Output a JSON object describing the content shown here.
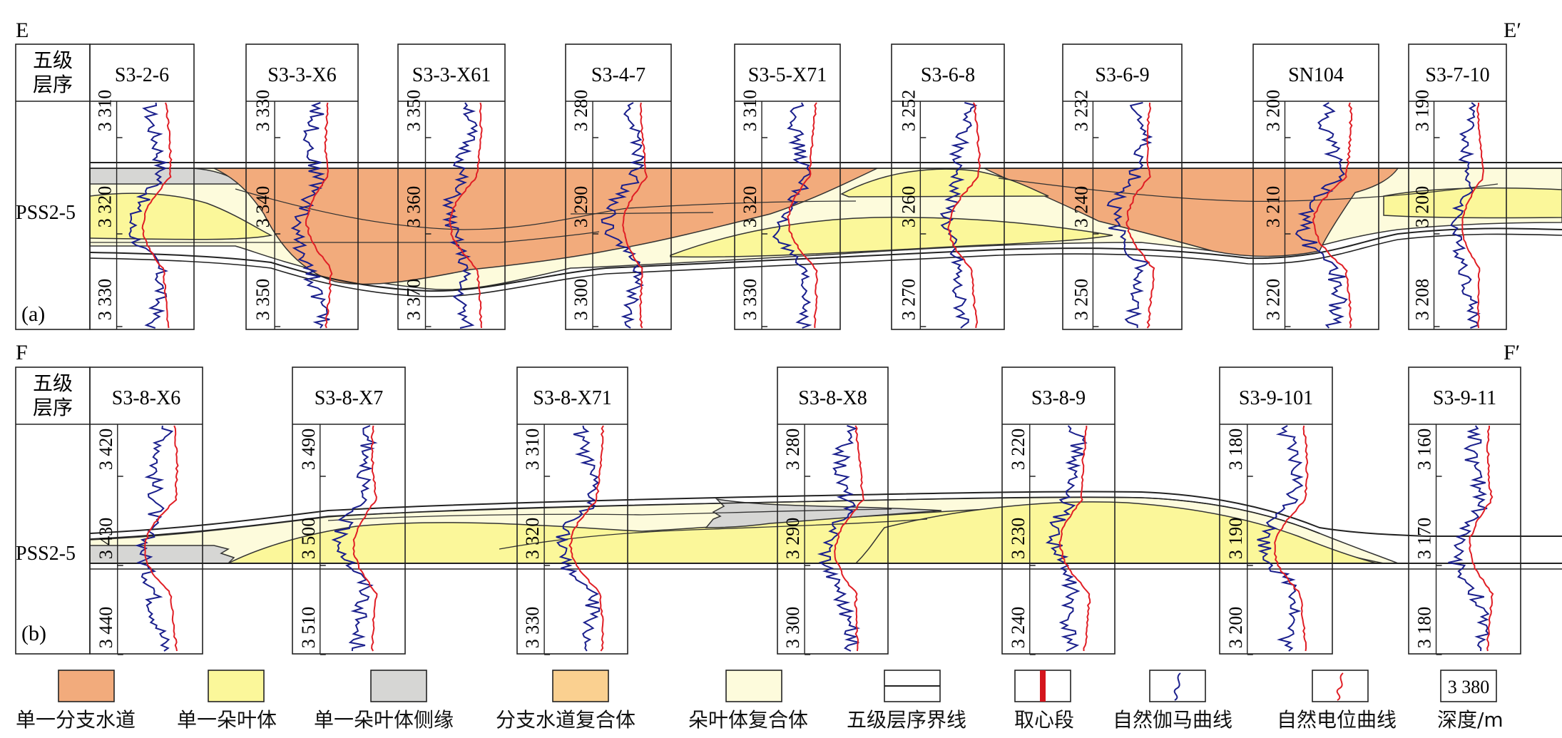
{
  "colors": {
    "branch_channel": "#f2ab7c",
    "lobe": "#fbf79a",
    "lobe_edge": "#d6d6d4",
    "channel_complex": "#fad090",
    "lobe_complex": "#fdfbdc",
    "gamma_curve": "#1a1f8c",
    "sp_curve": "#e01e25",
    "core_segment": "#d4151d"
  },
  "panel_a": {
    "left_label": "E",
    "right_label": "E′",
    "tag": "(a)",
    "header_col": "五级\n层序",
    "unit": "PSS2-5",
    "wells": [
      {
        "name": "S3-2-6",
        "depths": [
          "3 310",
          "3 320",
          "3 330"
        ]
      },
      {
        "name": "S3-3-X6",
        "depths": [
          "3 330",
          "3 340",
          "3 350"
        ]
      },
      {
        "name": "S3-3-X61",
        "depths": [
          "3 350",
          "3 360",
          "3 370"
        ]
      },
      {
        "name": "S3-4-7",
        "depths": [
          "3 280",
          "3 290",
          "3 300"
        ]
      },
      {
        "name": "S3-5-X71",
        "depths": [
          "3 310",
          "3 320",
          "3 330"
        ]
      },
      {
        "name": "S3-6-8",
        "depths": [
          "3 252",
          "3 260",
          "3 270"
        ]
      },
      {
        "name": "S3-6-9",
        "depths": [
          "3 232",
          "3 240",
          "3 250"
        ]
      },
      {
        "name": "SN104",
        "depths": [
          "3 200",
          "3 210",
          "3 220"
        ]
      },
      {
        "name": "S3-7-10",
        "depths": [
          "3 190",
          "3 200",
          "3 208"
        ]
      }
    ]
  },
  "panel_b": {
    "left_label": "F",
    "right_label": "F′",
    "tag": "(b)",
    "header_col": "五级\n层序",
    "unit": "PSS2-5",
    "wells": [
      {
        "name": "S3-8-X6",
        "depths": [
          "3 420",
          "3 430",
          "3 440"
        ]
      },
      {
        "name": "S3-8-X7",
        "depths": [
          "3 490",
          "3 500",
          "3 510"
        ]
      },
      {
        "name": "S3-8-X71",
        "depths": [
          "3 310",
          "3 320",
          "3 330"
        ]
      },
      {
        "name": "S3-8-X8",
        "depths": [
          "3 280",
          "3 290",
          "3 300"
        ]
      },
      {
        "name": "S3-8-9",
        "depths": [
          "3 220",
          "3 230",
          "3 240"
        ]
      },
      {
        "name": "S3-9-101",
        "depths": [
          "3 180",
          "3 190",
          "3 200"
        ]
      },
      {
        "name": "S3-9-11",
        "depths": [
          "3 160",
          "3 170",
          "3 180"
        ]
      }
    ]
  },
  "legend": [
    {
      "label": "单一分支水道",
      "icon": "branch-channel-swatch"
    },
    {
      "label": "单一朵叶体",
      "icon": "lobe-swatch"
    },
    {
      "label": "单一朵叶体侧缘",
      "icon": "lobe-edge-swatch"
    },
    {
      "label": "分支水道复合体",
      "icon": "channel-complex-swatch"
    },
    {
      "label": "朵叶体复合体",
      "icon": "lobe-complex-swatch"
    },
    {
      "label": "五级层序界线",
      "icon": "sequence-boundary-swatch"
    },
    {
      "label": "取心段",
      "icon": "core-segment-swatch"
    },
    {
      "label": "自然伽马曲线",
      "icon": "gamma-curve-swatch"
    },
    {
      "label": "自然电位曲线",
      "icon": "sp-curve-swatch"
    },
    {
      "label": "深度/m",
      "icon": "depth-swatch",
      "sample": "3 380"
    }
  ]
}
